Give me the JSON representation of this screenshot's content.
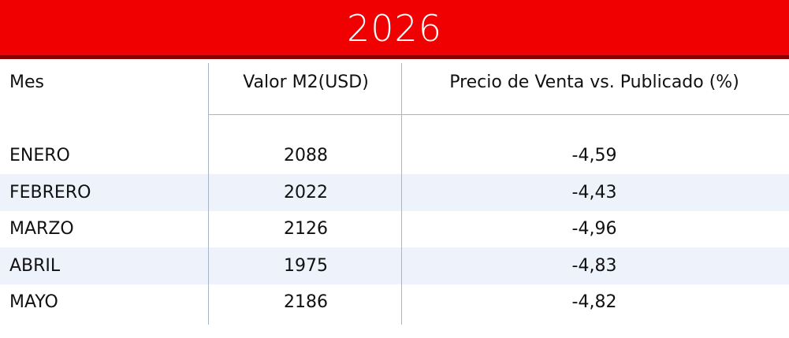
{
  "header": {
    "title": "2026"
  },
  "table": {
    "columns": [
      "Mes",
      "Valor M2(USD)",
      "Precio de Venta vs. Publicado (%)"
    ],
    "rows": [
      [
        "ENERO",
        2088,
        "-4,59"
      ],
      [
        "FEBRERO",
        2022,
        "-4,43"
      ],
      [
        "MARZO",
        2126,
        "-4,96"
      ],
      [
        "ABRIL",
        1975,
        "-4,83"
      ],
      [
        "MAYO",
        2186,
        "-4,82"
      ]
    ]
  }
}
